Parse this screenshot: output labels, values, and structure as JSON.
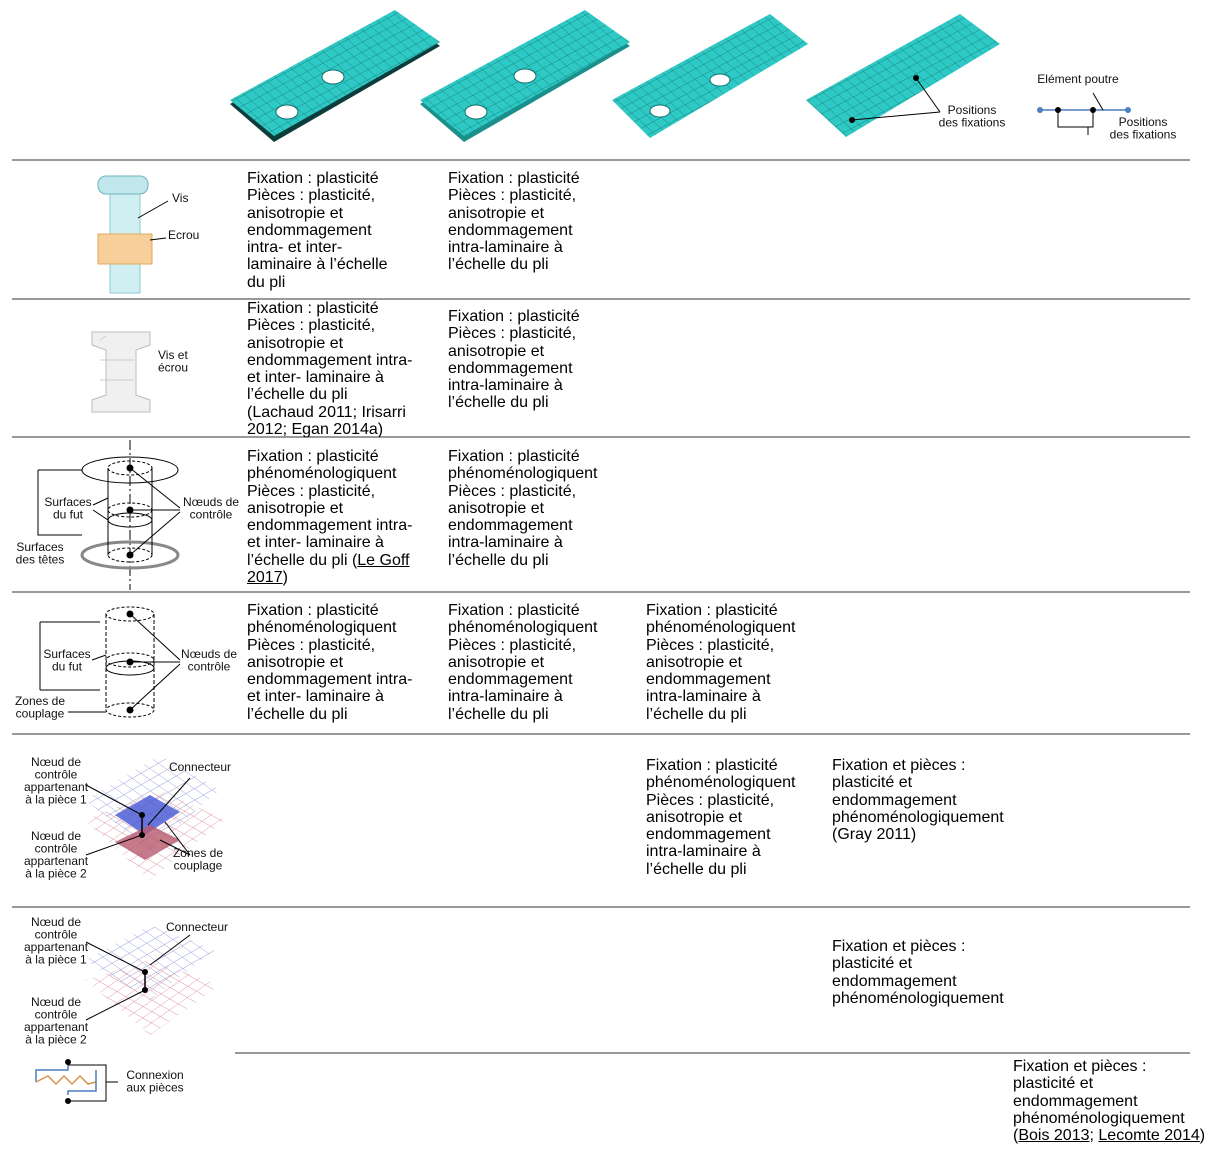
{
  "header": {
    "beam_label": [
      "Elément poutre"
    ],
    "positions_label_1": [
      "Positions",
      "des fixations"
    ],
    "positions_label_2": [
      "Positions",
      "des fixations"
    ]
  },
  "rows": [
    {
      "figure_labels": [
        [
          "Vis"
        ],
        [
          "Ecrou"
        ]
      ],
      "cells": [
        [
          "Fixation : plasticité",
          "Pièces : plasticité,",
          "anisotropie et",
          "endommagement",
          "intra- et inter-",
          "laminaire à l’échelle",
          "du pli"
        ],
        [
          "Fixation : plasticité",
          "Pièces : plasticité,",
          "anisotropie et",
          "endommagement",
          "intra-laminaire à",
          "l’échelle du pli"
        ],
        null,
        null,
        null
      ]
    },
    {
      "figure_labels": [
        [
          "Vis et",
          "écrou"
        ]
      ],
      "cells": [
        [
          "Fixation : plasticité",
          "Pièces : plasticité,",
          "anisotropie et",
          "endommagement intra-",
          "et inter- laminaire à",
          "l’échelle du pli",
          "(Lachaud 2011; Irisarri",
          "2012; Egan 2014a)"
        ],
        [
          "Fixation : plasticité",
          "Pièces : plasticité,",
          "anisotropie et",
          "endommagement",
          "intra-laminaire à",
          "l’échelle du pli"
        ],
        null,
        null,
        null
      ]
    },
    {
      "figure_labels": [
        [
          "Surfaces",
          "du fut"
        ],
        [
          "Nœuds de",
          "contrôle"
        ],
        [
          "Surfaces",
          "des têtes"
        ]
      ],
      "cells": [
        [
          "Fixation : plasticité",
          "phénoménologiquent",
          "Pièces : plasticité,",
          "anisotropie et",
          "endommagement intra-",
          "et inter- laminaire à",
          [
            {
              "text": "l’échelle du pli (",
              "underline": false
            },
            {
              "text": "Le Goff",
              "underline": true
            }
          ],
          [
            {
              "text": "2017",
              "underline": true
            },
            {
              "text": ")",
              "underline": false
            }
          ]
        ],
        [
          "Fixation : plasticité",
          "phénoménologiquent",
          "Pièces : plasticité,",
          "anisotropie et",
          "endommagement",
          "intra-laminaire à",
          "l’échelle du pli"
        ],
        null,
        null,
        null
      ]
    },
    {
      "figure_labels": [
        [
          "Surfaces",
          "du fut"
        ],
        [
          "Nœuds de",
          "contrôle"
        ],
        [
          "Zones de",
          "couplage"
        ]
      ],
      "cells": [
        [
          "Fixation : plasticité",
          "phénoménologiquent",
          "Pièces : plasticité,",
          "anisotropie et",
          "endommagement intra-",
          "et inter- laminaire à",
          "l’échelle du pli"
        ],
        [
          "Fixation : plasticité",
          "phénoménologiquent",
          "Pièces : plasticité,",
          "anisotropie et",
          "endommagement",
          "intra-laminaire à",
          "l’échelle du pli"
        ],
        [
          "Fixation : plasticité",
          "phénoménologiquent",
          "Pièces : plasticité,",
          "anisotropie et",
          "endommagement",
          "intra-laminaire à",
          "l’échelle du pli"
        ],
        null,
        null
      ]
    },
    {
      "figure_labels": [
        [
          "Nœud de",
          "contrôle",
          "appartenant",
          "à la pièce 1"
        ],
        [
          "Connecteur"
        ],
        [
          "Nœud de",
          "contrôle",
          "appartenant",
          "à la pièce 2"
        ],
        [
          "Zones de",
          "couplage"
        ]
      ],
      "cells": [
        null,
        null,
        [
          "Fixation : plasticité",
          "phénoménologiquent",
          "Pièces : plasticité,",
          "anisotropie et",
          "endommagement",
          "intra-laminaire à",
          "l’échelle du pli"
        ],
        [
          "Fixation et pièces :",
          "plasticité et",
          "endommagement",
          "phénoménologiquement",
          "(Gray 2011)"
        ],
        null
      ]
    },
    {
      "figure_labels": [
        [
          "Nœud de",
          "contrôle",
          "appartenant",
          "à la pièce 1"
        ],
        [
          "Connecteur"
        ],
        [
          "Nœud de",
          "contrôle",
          "appartenant",
          "à la pièce 2"
        ]
      ],
      "cells": [
        null,
        null,
        null,
        [
          "Fixation et pièces :",
          "plasticité et",
          "endommagement",
          "phénoménologiquement"
        ],
        null
      ]
    },
    {
      "figure_labels": [
        [
          "Connexion",
          "aux pièces"
        ]
      ],
      "cells": [
        null,
        null,
        null,
        null,
        [
          "Fixation et pièces :",
          "plasticité et",
          "endommagement",
          "phénoménologiquement",
          [
            {
              "text": "(",
              "underline": false
            },
            {
              "text": "Bois 2013",
              "underline": true
            },
            {
              "text": "; ",
              "underline": false
            },
            {
              "text": "Lecomte 2014",
              "underline": true
            },
            {
              "text": ")",
              "underline": false
            }
          ]
        ]
      ]
    }
  ]
}
